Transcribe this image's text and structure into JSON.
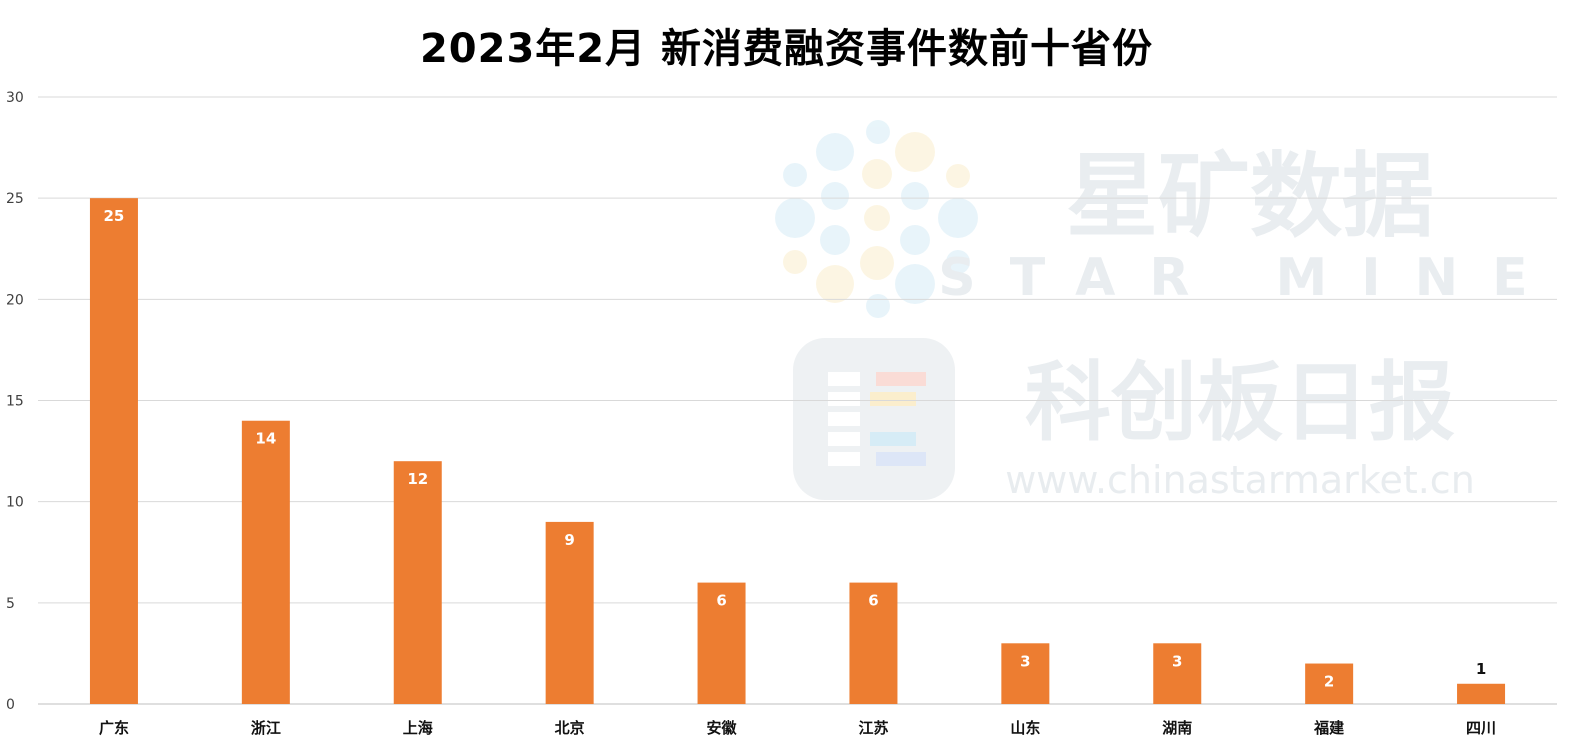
{
  "chart_data": {
    "type": "bar",
    "title": "2023年2月 新消费融资事件数前十省份",
    "categories": [
      "广东",
      "浙江",
      "上海",
      "北京",
      "安徽",
      "江苏",
      "山东",
      "湖南",
      "福建",
      "四川"
    ],
    "values": [
      25,
      14,
      12,
      9,
      6,
      6,
      3,
      3,
      2,
      1
    ],
    "ylim": [
      0,
      30
    ],
    "yticks": [
      0,
      5,
      10,
      15,
      20,
      25,
      30
    ],
    "xlabel": "",
    "ylabel": "",
    "grid": true,
    "legend": "none",
    "bar_color": "#ed7d31",
    "data_labels": true
  },
  "watermark": {
    "brand_cn": "星矿数据",
    "brand_en": "STAR MINE",
    "outlet": "科创板日报",
    "url": "www.chinastarmarket.cn"
  }
}
